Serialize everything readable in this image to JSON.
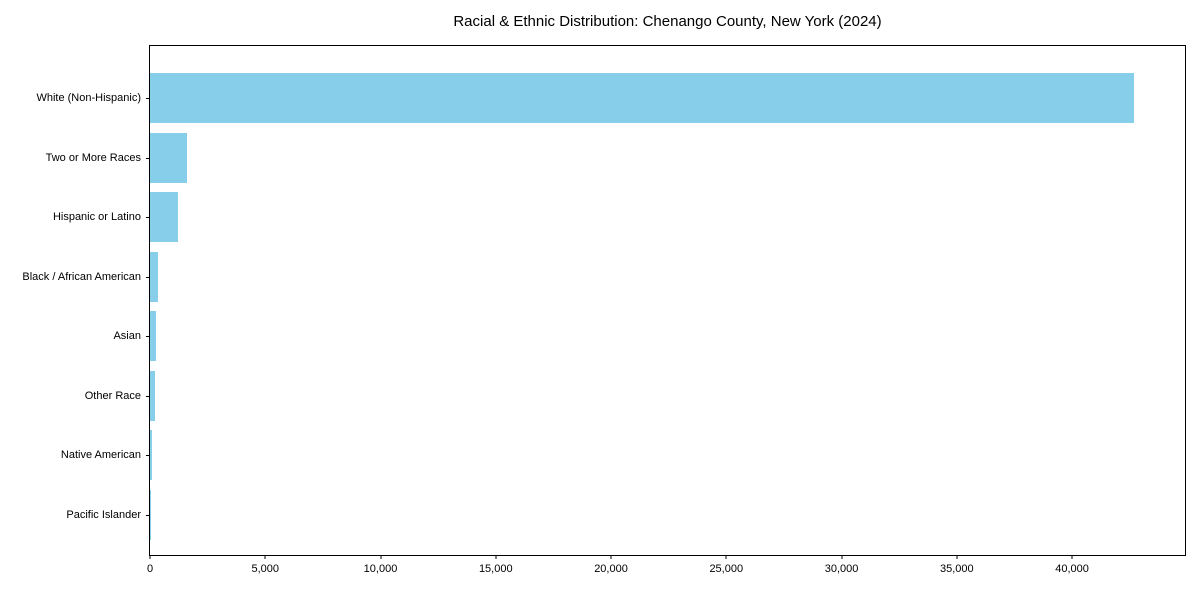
{
  "colors": {
    "bar_fill": "#87CEEB",
    "axis": "#000000",
    "background": "#FFFFFF",
    "text": "#000000"
  },
  "chart_data": {
    "type": "bar",
    "orientation": "horizontal",
    "title": "Racial & Ethnic Distribution: Chenango County, New York (2024)",
    "xlabel": "",
    "ylabel": "",
    "categories": [
      "White (Non-Hispanic)",
      "Two or More Races",
      "Hispanic or Latino",
      "Black / African American",
      "Asian",
      "Other Race",
      "Native American",
      "Pacific Islander"
    ],
    "values": [
      42700,
      1600,
      1200,
      350,
      260,
      210,
      100,
      15
    ],
    "xlim": [
      0,
      44900
    ],
    "xticks": [
      0,
      5000,
      10000,
      15000,
      20000,
      25000,
      30000,
      35000,
      40000
    ],
    "xtick_labels": [
      "0",
      "5,000",
      "10,000",
      "15,000",
      "20,000",
      "25,000",
      "30,000",
      "35,000",
      "40,000"
    ],
    "grid": false,
    "legend": "none",
    "bar_order": "largest-at-top"
  }
}
